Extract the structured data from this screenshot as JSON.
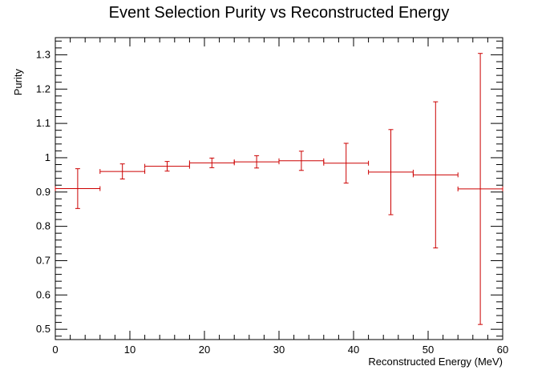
{
  "chart_data": {
    "type": "scatter",
    "title": "Event Selection Purity vs Reconstructed Energy",
    "xlabel": "Reconstructed Energy (MeV)",
    "ylabel": "Purity",
    "xlim": [
      0,
      60
    ],
    "ylim": [
      0.47,
      1.35
    ],
    "x_ticks": [
      0,
      10,
      20,
      30,
      40,
      50,
      60
    ],
    "y_ticks": [
      0.5,
      0.6,
      0.7,
      0.8,
      0.9,
      1,
      1.1,
      1.2,
      1.3
    ],
    "grid": false,
    "color": "#cc0000",
    "series": [
      {
        "points": [
          {
            "x": 3,
            "x_low": 0,
            "x_high": 6,
            "y": 0.91,
            "y_err": 0.058
          },
          {
            "x": 9,
            "x_low": 6,
            "x_high": 12,
            "y": 0.96,
            "y_err": 0.022
          },
          {
            "x": 15,
            "x_low": 12,
            "x_high": 18,
            "y": 0.975,
            "y_err": 0.014
          },
          {
            "x": 21,
            "x_low": 18,
            "x_high": 24,
            "y": 0.985,
            "y_err": 0.014
          },
          {
            "x": 27,
            "x_low": 24,
            "x_high": 30,
            "y": 0.988,
            "y_err": 0.018
          },
          {
            "x": 33,
            "x_low": 30,
            "x_high": 36,
            "y": 0.991,
            "y_err": 0.028
          },
          {
            "x": 39,
            "x_low": 36,
            "x_high": 42,
            "y": 0.984,
            "y_err": 0.058
          },
          {
            "x": 45,
            "x_low": 42,
            "x_high": 48,
            "y": 0.958,
            "y_err": 0.124
          },
          {
            "x": 51,
            "x_low": 48,
            "x_high": 54,
            "y": 0.95,
            "y_err": 0.213
          },
          {
            "x": 57,
            "x_low": 54,
            "x_high": 60,
            "y": 0.909,
            "y_err": 0.395
          }
        ]
      }
    ]
  }
}
